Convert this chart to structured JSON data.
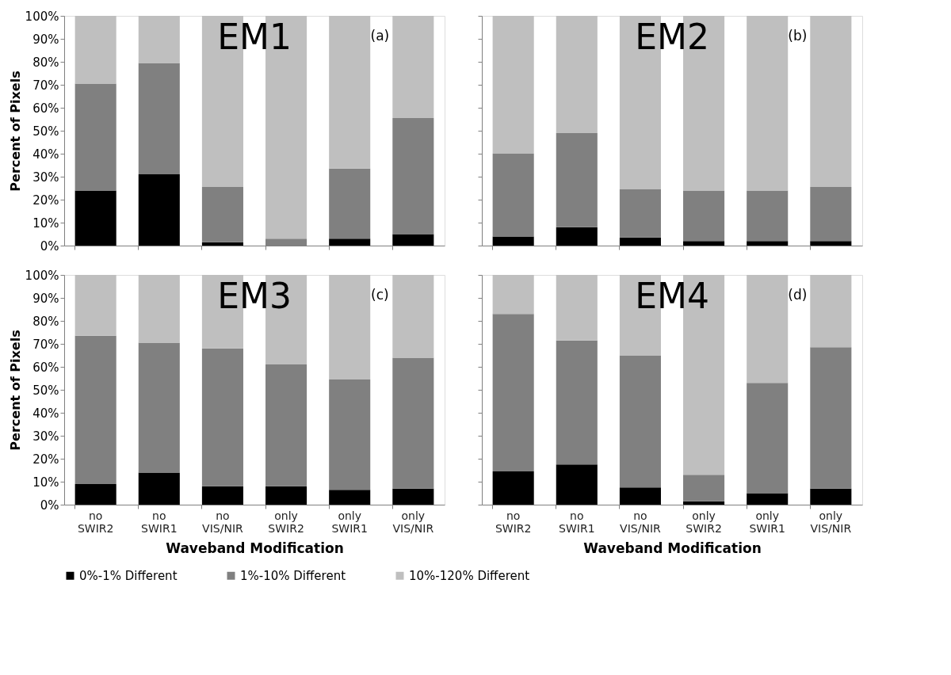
{
  "chart_data": [
    {
      "type": "bar",
      "stacked": true,
      "ylabel": "Percent of Pixels",
      "annotations": [
        "EM1",
        "(a)"
      ],
      "categories": [
        "no SWIR2",
        "no SWIR1",
        "no VIS/NIR",
        "only SWIR2",
        "only SWIR1",
        "only VIS/NIR"
      ],
      "ylim": [
        0,
        100
      ],
      "yticks": [
        {
          "value": 0,
          "label": "0%"
        },
        {
          "value": 10,
          "label": "10%"
        },
        {
          "value": 20,
          "label": "20%"
        },
        {
          "value": 30,
          "label": "30%"
        },
        {
          "value": 40,
          "label": "40%"
        },
        {
          "value": 50,
          "label": "50%"
        },
        {
          "value": 60,
          "label": "60%"
        },
        {
          "value": 70,
          "label": "70%"
        },
        {
          "value": 80,
          "label": "80%"
        },
        {
          "value": 90,
          "label": "90%"
        },
        {
          "value": 100,
          "label": "100%"
        }
      ],
      "tick_labels": "y",
      "legend": "bottom",
      "grid": false,
      "series": [
        {
          "name": "0%-1% Different",
          "color": "#000000",
          "values": [
            24,
            31,
            1.5,
            0,
            3,
            5
          ]
        },
        {
          "name": "1%-10% Different",
          "color": "#808080",
          "values": [
            46.5,
            48.5,
            24,
            3,
            30.5,
            50.5
          ]
        },
        {
          "name": "10%-120% Different",
          "color": "#bfbfbf",
          "values": [
            29.5,
            20.5,
            74.5,
            97,
            66.5,
            44.5
          ]
        }
      ]
    },
    {
      "type": "bar",
      "stacked": true,
      "annotations": [
        "EM2",
        "(b)"
      ],
      "categories": [
        "no SWIR2",
        "no SWIR1",
        "no VIS/NIR",
        "only SWIR2",
        "only SWIR1",
        "only VIS/NIR"
      ],
      "ylim": [
        0,
        100
      ],
      "yticks": [
        {
          "value": 0,
          "label": "0%"
        },
        {
          "value": 10,
          "label": "10%"
        },
        {
          "value": 20,
          "label": "20%"
        },
        {
          "value": 30,
          "label": "30%"
        },
        {
          "value": 40,
          "label": "40%"
        },
        {
          "value": 50,
          "label": "50%"
        },
        {
          "value": 60,
          "label": "60%"
        },
        {
          "value": 70,
          "label": "70%"
        },
        {
          "value": 80,
          "label": "80%"
        },
        {
          "value": 90,
          "label": "90%"
        },
        {
          "value": 100,
          "label": "100%"
        }
      ],
      "tick_labels": false,
      "legend": "bottom",
      "grid": false,
      "series": [
        {
          "name": "0%-1% Different",
          "color": "#000000",
          "values": [
            4,
            8,
            3.5,
            2,
            2,
            2
          ]
        },
        {
          "name": "1%-10% Different",
          "color": "#808080",
          "values": [
            36,
            41,
            21,
            22,
            22,
            23.5
          ]
        },
        {
          "name": "10%-120% Different",
          "color": "#bfbfbf",
          "values": [
            60,
            51,
            75.5,
            76,
            76,
            74.5
          ]
        }
      ]
    },
    {
      "type": "bar",
      "stacked": true,
      "ylabel": "Percent of Pixels",
      "xlabel": "Waveband Modification",
      "annotations": [
        "EM3",
        "(c)"
      ],
      "categories": [
        "no SWIR2",
        "no SWIR1",
        "no VIS/NIR",
        "only SWIR2",
        "only SWIR1",
        "only VIS/NIR"
      ],
      "ylim": [
        0,
        100
      ],
      "yticks": [
        {
          "value": 0,
          "label": "0%"
        },
        {
          "value": 10,
          "label": "10%"
        },
        {
          "value": 20,
          "label": "20%"
        },
        {
          "value": 30,
          "label": "30%"
        },
        {
          "value": 40,
          "label": "40%"
        },
        {
          "value": 50,
          "label": "50%"
        },
        {
          "value": 60,
          "label": "60%"
        },
        {
          "value": 70,
          "label": "70%"
        },
        {
          "value": 80,
          "label": "80%"
        },
        {
          "value": 90,
          "label": "90%"
        },
        {
          "value": 100,
          "label": "100%"
        }
      ],
      "legend": "bottom",
      "grid": false,
      "series": [
        {
          "name": "0%-1% Different",
          "color": "#000000",
          "values": [
            9,
            14,
            8,
            8,
            6.5,
            7
          ]
        },
        {
          "name": "1%-10% Different",
          "color": "#808080",
          "values": [
            64.5,
            56.5,
            60,
            53,
            48,
            57
          ]
        },
        {
          "name": "10%-120% Different",
          "color": "#bfbfbf",
          "values": [
            26.5,
            29.5,
            32,
            39,
            45.5,
            36
          ]
        }
      ]
    },
    {
      "type": "bar",
      "stacked": true,
      "xlabel": "Waveband Modification",
      "annotations": [
        "EM4",
        "(d)"
      ],
      "categories": [
        "no SWIR2",
        "no SWIR1",
        "no VIS/NIR",
        "only SWIR2",
        "only SWIR1",
        "only VIS/NIR"
      ],
      "ylim": [
        0,
        100
      ],
      "yticks": [
        {
          "value": 0,
          "label": "0%"
        },
        {
          "value": 10,
          "label": "10%"
        },
        {
          "value": 20,
          "label": "20%"
        },
        {
          "value": 30,
          "label": "30%"
        },
        {
          "value": 40,
          "label": "40%"
        },
        {
          "value": 50,
          "label": "50%"
        },
        {
          "value": 60,
          "label": "60%"
        },
        {
          "value": 70,
          "label": "70%"
        },
        {
          "value": 80,
          "label": "80%"
        },
        {
          "value": 90,
          "label": "90%"
        },
        {
          "value": 100,
          "label": "100%"
        }
      ],
      "tick_labels": "x",
      "legend": "bottom",
      "grid": false,
      "series": [
        {
          "name": "0%-1% Different",
          "color": "#000000",
          "values": [
            14.5,
            17.5,
            7.5,
            1.5,
            5,
            7
          ]
        },
        {
          "name": "1%-10% Different",
          "color": "#808080",
          "values": [
            68.5,
            54,
            57.5,
            11.5,
            48,
            61.5
          ]
        },
        {
          "name": "10%-120% Different",
          "color": "#bfbfbf",
          "values": [
            17,
            28.5,
            35,
            87,
            47,
            31.5
          ]
        }
      ]
    }
  ]
}
